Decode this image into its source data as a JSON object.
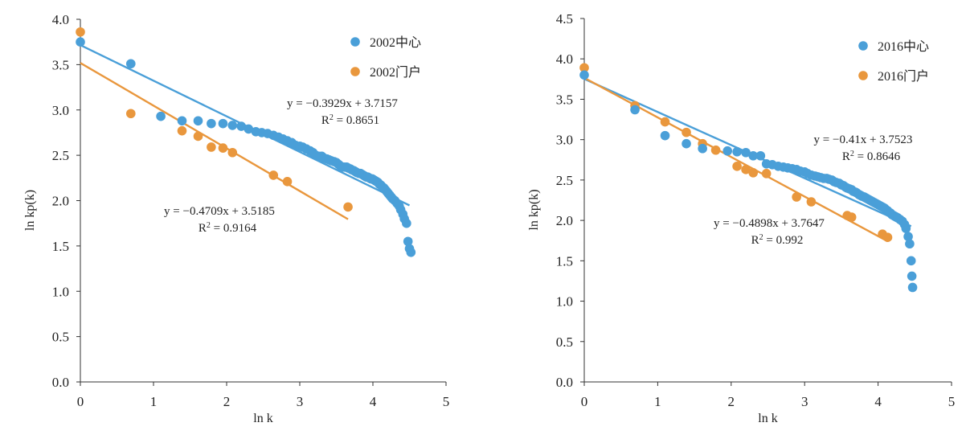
{
  "chart_data": [
    {
      "type": "scatter",
      "xlabel": "ln k",
      "ylabel": "ln kp(k)",
      "xlim": [
        0,
        5
      ],
      "ylim": [
        0,
        4.0
      ],
      "xticks": [
        "0",
        "1",
        "2",
        "3",
        "4",
        "5"
      ],
      "yticks": [
        "0.0",
        "0.5",
        "1.0",
        "1.5",
        "2.0",
        "2.5",
        "3.0",
        "3.5",
        "4.0"
      ],
      "legend_position": "top-right",
      "series": [
        {
          "name": "2002中心",
          "color": "#4a9fd8",
          "points": [
            [
              0,
              3.75
            ],
            [
              0.69,
              3.51
            ],
            [
              1.1,
              2.93
            ],
            [
              1.39,
              2.88
            ],
            [
              1.61,
              2.88
            ],
            [
              1.79,
              2.85
            ],
            [
              1.95,
              2.85
            ],
            [
              2.08,
              2.83
            ],
            [
              2.2,
              2.82
            ],
            [
              2.3,
              2.79
            ],
            [
              2.4,
              2.76
            ],
            [
              2.48,
              2.75
            ],
            [
              2.56,
              2.74
            ],
            [
              2.64,
              2.72
            ],
            [
              2.71,
              2.7
            ],
            [
              2.77,
              2.68
            ],
            [
              2.83,
              2.66
            ],
            [
              2.89,
              2.64
            ],
            [
              2.94,
              2.61
            ],
            [
              3.0,
              2.6
            ],
            [
              3.04,
              2.59
            ],
            [
              3.09,
              2.57
            ],
            [
              3.14,
              2.55
            ],
            [
              3.18,
              2.53
            ],
            [
              3.22,
              2.5
            ],
            [
              3.26,
              2.49
            ],
            [
              3.3,
              2.49
            ],
            [
              3.33,
              2.47
            ],
            [
              3.37,
              2.46
            ],
            [
              3.4,
              2.45
            ],
            [
              3.43,
              2.44
            ],
            [
              3.47,
              2.43
            ],
            [
              3.5,
              2.42
            ],
            [
              3.53,
              2.4
            ],
            [
              3.56,
              2.38
            ],
            [
              3.58,
              2.37
            ],
            [
              3.61,
              2.37
            ],
            [
              3.64,
              2.37
            ],
            [
              3.66,
              2.36
            ],
            [
              3.69,
              2.35
            ],
            [
              3.71,
              2.34
            ],
            [
              3.74,
              2.33
            ],
            [
              3.76,
              2.32
            ],
            [
              3.78,
              2.31
            ],
            [
              3.81,
              2.3
            ],
            [
              3.83,
              2.3
            ],
            [
              3.85,
              2.29
            ],
            [
              3.87,
              2.28
            ],
            [
              3.89,
              2.27
            ],
            [
              3.91,
              2.26
            ],
            [
              3.93,
              2.26
            ],
            [
              3.95,
              2.25
            ],
            [
              3.97,
              2.24
            ],
            [
              3.99,
              2.24
            ],
            [
              4.01,
              2.23
            ],
            [
              4.03,
              2.22
            ],
            [
              4.05,
              2.21
            ],
            [
              4.07,
              2.2
            ],
            [
              4.09,
              2.18
            ],
            [
              4.11,
              2.17
            ],
            [
              4.13,
              2.15
            ],
            [
              4.15,
              2.14
            ],
            [
              4.17,
              2.12
            ],
            [
              4.19,
              2.1
            ],
            [
              4.21,
              2.08
            ],
            [
              4.23,
              2.06
            ],
            [
              4.25,
              2.04
            ],
            [
              4.27,
              2.02
            ],
            [
              4.3,
              2.0
            ],
            [
              4.33,
              1.97
            ],
            [
              4.36,
              1.94
            ],
            [
              4.38,
              1.9
            ],
            [
              4.41,
              1.85
            ],
            [
              4.43,
              1.8
            ],
            [
              4.46,
              1.75
            ],
            [
              4.48,
              1.55
            ],
            [
              4.5,
              1.47
            ],
            [
              4.52,
              1.43
            ]
          ]
        },
        {
          "name": "2002门户",
          "color": "#e9973d",
          "points": [
            [
              0,
              3.86
            ],
            [
              0.69,
              2.96
            ],
            [
              1.39,
              2.77
            ],
            [
              1.61,
              2.71
            ],
            [
              1.79,
              2.59
            ],
            [
              1.95,
              2.58
            ],
            [
              2.08,
              2.53
            ],
            [
              2.64,
              2.28
            ],
            [
              2.83,
              2.21
            ],
            [
              3.66,
              1.93
            ]
          ]
        }
      ],
      "trendlines": [
        {
          "series": "2002中心",
          "slope": -0.3929,
          "intercept": 3.7157,
          "x_range": [
            0,
            4.5
          ],
          "equation": "y = −0.3929x + 3.7157",
          "r2_prefix": "R",
          "r2_sup": "2",
          "r2_value": " = 0.8651"
        },
        {
          "series": "2002门户",
          "slope": -0.4709,
          "intercept": 3.5185,
          "x_range": [
            0,
            3.66
          ],
          "equation": "y = −0.4709x + 3.5185",
          "r2_prefix": "R",
          "r2_sup": "2",
          "r2_value": " = 0.9164"
        }
      ]
    },
    {
      "type": "scatter",
      "xlabel": "ln k",
      "ylabel": "ln kp(k)",
      "xlim": [
        0,
        5
      ],
      "ylim": [
        0,
        4.5
      ],
      "xticks": [
        "0",
        "1",
        "2",
        "3",
        "4",
        "5"
      ],
      "yticks": [
        "0.0",
        "0.5",
        "1.0",
        "1.5",
        "2.0",
        "2.5",
        "3.0",
        "3.5",
        "4.0",
        "4.5"
      ],
      "legend_position": "top-right",
      "series": [
        {
          "name": "2016中心",
          "color": "#4a9fd8",
          "points": [
            [
              0,
              3.8
            ],
            [
              0.69,
              3.37
            ],
            [
              1.1,
              3.05
            ],
            [
              1.39,
              2.95
            ],
            [
              1.61,
              2.89
            ],
            [
              1.95,
              2.86
            ],
            [
              2.08,
              2.85
            ],
            [
              2.2,
              2.84
            ],
            [
              2.3,
              2.8
            ],
            [
              2.4,
              2.8
            ],
            [
              2.48,
              2.7
            ],
            [
              2.56,
              2.69
            ],
            [
              2.64,
              2.67
            ],
            [
              2.71,
              2.66
            ],
            [
              2.77,
              2.65
            ],
            [
              2.83,
              2.64
            ],
            [
              2.89,
              2.63
            ],
            [
              2.94,
              2.61
            ],
            [
              3.0,
              2.6
            ],
            [
              3.04,
              2.58
            ],
            [
              3.09,
              2.56
            ],
            [
              3.14,
              2.55
            ],
            [
              3.18,
              2.54
            ],
            [
              3.22,
              2.53
            ],
            [
              3.26,
              2.52
            ],
            [
              3.3,
              2.52
            ],
            [
              3.33,
              2.51
            ],
            [
              3.37,
              2.5
            ],
            [
              3.4,
              2.48
            ],
            [
              3.43,
              2.47
            ],
            [
              3.47,
              2.46
            ],
            [
              3.5,
              2.44
            ],
            [
              3.53,
              2.43
            ],
            [
              3.56,
              2.41
            ],
            [
              3.58,
              2.4
            ],
            [
              3.61,
              2.39
            ],
            [
              3.64,
              2.38
            ],
            [
              3.66,
              2.36
            ],
            [
              3.69,
              2.35
            ],
            [
              3.71,
              2.34
            ],
            [
              3.74,
              2.32
            ],
            [
              3.76,
              2.31
            ],
            [
              3.78,
              2.3
            ],
            [
              3.81,
              2.29
            ],
            [
              3.83,
              2.28
            ],
            [
              3.85,
              2.27
            ],
            [
              3.87,
              2.26
            ],
            [
              3.89,
              2.25
            ],
            [
              3.91,
              2.24
            ],
            [
              3.93,
              2.23
            ],
            [
              3.95,
              2.22
            ],
            [
              3.97,
              2.21
            ],
            [
              3.99,
              2.2
            ],
            [
              4.01,
              2.19
            ],
            [
              4.03,
              2.18
            ],
            [
              4.05,
              2.17
            ],
            [
              4.07,
              2.16
            ],
            [
              4.09,
              2.15
            ],
            [
              4.11,
              2.13
            ],
            [
              4.13,
              2.12
            ],
            [
              4.15,
              2.1
            ],
            [
              4.17,
              2.09
            ],
            [
              4.19,
              2.07
            ],
            [
              4.21,
              2.06
            ],
            [
              4.23,
              2.05
            ],
            [
              4.25,
              2.04
            ],
            [
              4.27,
              2.03
            ],
            [
              4.3,
              2.01
            ],
            [
              4.33,
              1.99
            ],
            [
              4.36,
              1.95
            ],
            [
              4.38,
              1.9
            ],
            [
              4.41,
              1.8
            ],
            [
              4.43,
              1.71
            ],
            [
              4.45,
              1.5
            ],
            [
              4.46,
              1.31
            ],
            [
              4.47,
              1.17
            ]
          ]
        },
        {
          "name": "2016门户",
          "color": "#e9973d",
          "points": [
            [
              0,
              3.89
            ],
            [
              0.69,
              3.42
            ],
            [
              1.1,
              3.22
            ],
            [
              1.39,
              3.09
            ],
            [
              1.61,
              2.95
            ],
            [
              1.79,
              2.87
            ],
            [
              2.08,
              2.67
            ],
            [
              2.2,
              2.63
            ],
            [
              2.3,
              2.59
            ],
            [
              2.48,
              2.58
            ],
            [
              2.89,
              2.29
            ],
            [
              3.09,
              2.23
            ],
            [
              3.58,
              2.06
            ],
            [
              3.64,
              2.04
            ],
            [
              4.06,
              1.83
            ],
            [
              4.13,
              1.79
            ]
          ]
        }
      ],
      "trendlines": [
        {
          "series": "2016中心",
          "slope": -0.41,
          "intercept": 3.7523,
          "x_range": [
            0,
            4.45
          ],
          "equation": "y = −0.41x + 3.7523",
          "r2_prefix": "R",
          "r2_sup": "2",
          "r2_value": " = 0.8646"
        },
        {
          "series": "2016门户",
          "slope": -0.4898,
          "intercept": 3.7647,
          "x_range": [
            0,
            4.13
          ],
          "equation": "y = −0.4898x + 3.7647",
          "r2_prefix": "R",
          "r2_sup": "2",
          "r2_value": " = 0.992"
        }
      ]
    }
  ]
}
